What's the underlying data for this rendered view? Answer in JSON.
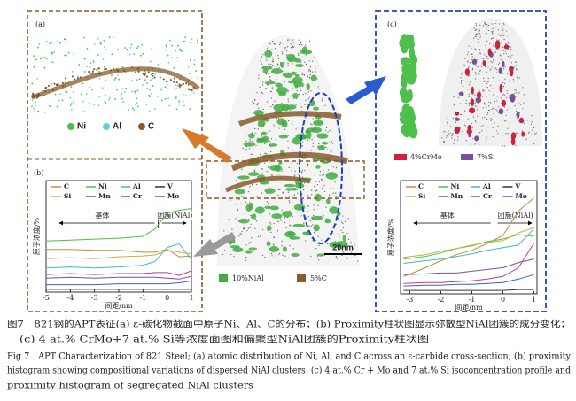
{
  "panels": {
    "a": {
      "label": "(a)",
      "legend": [
        "Ni",
        "Al",
        "C"
      ]
    },
    "center": {
      "legend": [
        "10%NiAl",
        "5%C"
      ],
      "scale_bar": "20nm"
    },
    "c": {
      "label": "(c)",
      "legend": [
        "4%CrMo",
        "7%Si"
      ]
    }
  },
  "chart_data": [
    {
      "type": "line",
      "label": "(b)",
      "x_label": "间距/nm",
      "y_label": "原子浓度/%",
      "annotations": [
        "基体",
        "团簇(NiAl)"
      ],
      "x": [
        -5,
        -4,
        -3,
        -2,
        -1,
        -0.5,
        0,
        0.5,
        1
      ],
      "xlim": [
        -5,
        1
      ],
      "xticks": [
        -5,
        -4,
        -3,
        -2,
        -1,
        0,
        1
      ],
      "ylim": [
        0,
        12
      ],
      "series": [
        {
          "name": "C",
          "color": "#c8893a",
          "values": [
            4.6,
            4.6,
            4.5,
            4.5,
            4.3,
            4.3,
            4.6,
            3.8,
            3.9
          ]
        },
        {
          "name": "Ni",
          "color": "#4cbf4c",
          "values": [
            5.5,
            5.6,
            5.7,
            5.8,
            6,
            6.8,
            8.5,
            8.8,
            9
          ]
        },
        {
          "name": "Al",
          "color": "#3fb8d0",
          "values": [
            2.6,
            2.7,
            2.6,
            2.7,
            2.9,
            3.3,
            4.8,
            5.2,
            3.5
          ]
        },
        {
          "name": "V",
          "color": "#333333",
          "values": [
            0.3,
            0.3,
            0.3,
            0.3,
            0.3,
            0.3,
            0.3,
            0.3,
            0.3
          ]
        },
        {
          "name": "Si",
          "color": "#c9b23a",
          "values": [
            3.6,
            3.7,
            3.6,
            3.8,
            3.9,
            4,
            4.5,
            4.3,
            4.1
          ]
        },
        {
          "name": "Mn",
          "color": "#7b4fa0",
          "values": [
            1.5,
            1.6,
            1.5,
            1.6,
            1.6,
            1.6,
            1.5,
            1.4,
            1.7
          ]
        },
        {
          "name": "Cr",
          "color": "#c03a8a",
          "values": [
            1.9,
            2,
            1.9,
            2,
            2,
            2.1,
            2.1,
            1.8,
            2.3
          ]
        },
        {
          "name": "Mo",
          "color": "#3a5fc9",
          "values": [
            0.8,
            0.8,
            0.8,
            0.9,
            0.9,
            0.9,
            0.9,
            1,
            1.2
          ]
        }
      ]
    },
    {
      "type": "line",
      "x_label": "间距/nm",
      "y_label": "原子浓度/%",
      "annotations": [
        "基体",
        "团簇(NiAl)"
      ],
      "x": [
        -3.2,
        -2.5,
        -2,
        -1.5,
        -1,
        -0.5,
        0,
        0.5,
        1
      ],
      "xlim": [
        -3.3,
        1.1
      ],
      "xticks": [
        -3,
        -2,
        -1,
        0,
        1
      ],
      "ylim": [
        0,
        13
      ],
      "series": [
        {
          "name": "C",
          "color": "#c8893a",
          "values": [
            2,
            3,
            3.8,
            4.5,
            5,
            5.8,
            6.7,
            9.5,
            11
          ]
        },
        {
          "name": "Ni",
          "color": "#4cbf4c",
          "values": [
            4,
            4.3,
            4.7,
            5.2,
            5.5,
            6,
            6.3,
            6.8,
            6.6
          ]
        },
        {
          "name": "Al",
          "color": "#3fb8d0",
          "values": [
            3.5,
            3.8,
            4,
            4.3,
            4.6,
            5,
            5.3,
            5.6,
            7.5
          ]
        },
        {
          "name": "V",
          "color": "#333333",
          "values": [
            0.4,
            0.4,
            0.4,
            0.4,
            0.4,
            0.4,
            0.4,
            0.5,
            0.5
          ]
        },
        {
          "name": "Si",
          "color": "#c9b23a",
          "values": [
            4.2,
            4.5,
            4.9,
            5.2,
            5.6,
            5.9,
            6.1,
            7,
            7.6
          ]
        },
        {
          "name": "Mn",
          "color": "#7b4fa0",
          "values": [
            2.2,
            2.3,
            2.4,
            2.4,
            2.6,
            2.8,
            3,
            3.6,
            4
          ]
        },
        {
          "name": "Cr",
          "color": "#c03a8a",
          "values": [
            1.2,
            1.3,
            1.3,
            1.4,
            1.5,
            1.7,
            2,
            3,
            5.8
          ]
        },
        {
          "name": "Mo",
          "color": "#3a5fc9",
          "values": [
            0.9,
            1,
            1,
            1.1,
            1.1,
            1.2,
            1.3,
            1.7,
            2.2
          ]
        }
      ]
    }
  ],
  "caption": {
    "zh": [
      "图7　821钢的APT表征(a) ε-碳化物截面中原子Ni、Al、C的分布；(b) Proximity柱状图显示弥散型NiAl团簇的成分变化；",
      "(c) 4 at.% CrMo+7 at.% Si等浓度面图和偏聚型NiAl团簇的Proximity柱状图"
    ],
    "en": [
      "Fig 7　APT Characterization of 821 Steel; (a) atomic distribution of Ni, Al, and C across an ε-carbide cross-section; (b) proximity",
      "histogram showing compositional variations of dispersed NiAl clusters; (c) 4 at.% Cr + Mo and 7 at.% Si isoconcentration profile and",
      "proximity histogram of segregated NiAl clusters"
    ]
  }
}
